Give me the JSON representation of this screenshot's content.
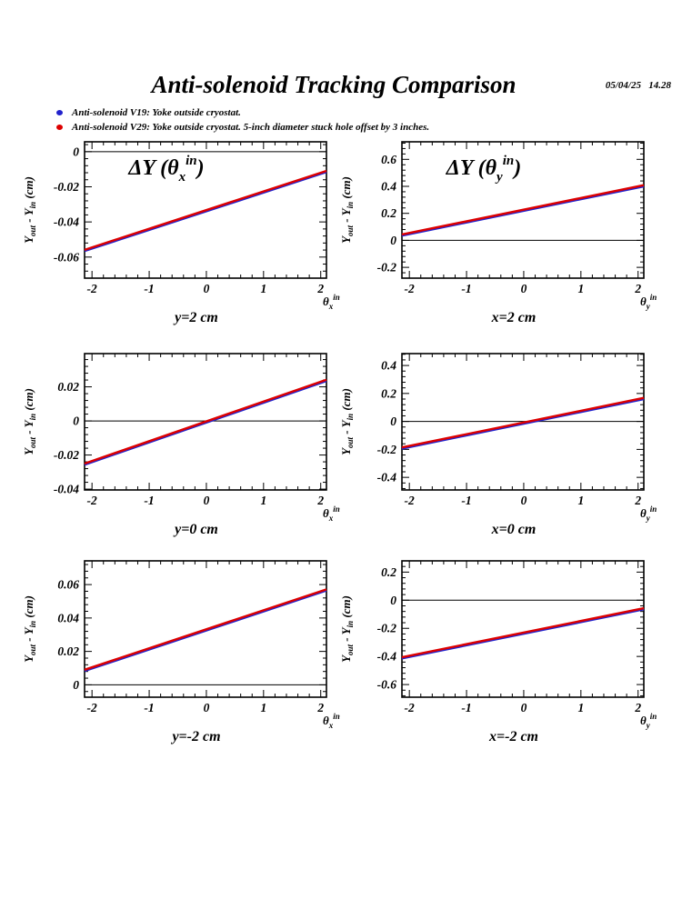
{
  "header": {
    "title": "Anti-solenoid Tracking Comparison",
    "datetime": "05/04/25   14.28"
  },
  "legend": {
    "items": [
      {
        "marker_color": "#2222cc",
        "label": "Anti-solenoid V19: Yoke outside cryostat."
      },
      {
        "marker_color": "#dd0000",
        "label": "Anti-solenoid V29: Yoke outside cryostat. 5-inch diameter stuck hole offset by 3 inches."
      }
    ]
  },
  "axis": {
    "ylabel_segments": [
      {
        "t": "Y"
      },
      {
        "t": "out",
        "sub": true
      },
      {
        "t": " - Y"
      },
      {
        "t": "in",
        "sub": true
      },
      {
        "t": " (cm)"
      }
    ]
  },
  "chart_data": {
    "type": "line",
    "x_axis": {
      "lim": [
        -2.13,
        2.1
      ],
      "major_ticks": [
        -2,
        -1,
        0,
        1,
        2
      ],
      "minor_step": 0.2,
      "tick_labels": [
        "-2",
        "-1",
        "0",
        "1",
        "2"
      ]
    },
    "series_colors": {
      "v19_blue": "#2222cc",
      "v29_red": "#dd0000"
    },
    "ylabel": "Y_out - Y_in (cm)",
    "plots": [
      {
        "id": "y2",
        "col": 0,
        "row": 0,
        "caption": "y=2 cm",
        "title": {
          "prefix": "ΔY (θ",
          "sub": "x",
          "sup": "in",
          "suffix": ")"
        },
        "xsym": {
          "base": "θ",
          "sub": "x",
          "sup": "in"
        },
        "ylim": [
          -0.072,
          0.0056
        ],
        "y_minor_step": 0.004,
        "zero_line": true,
        "yticks": [
          {
            "v": 0,
            "label": "0"
          },
          {
            "v": -0.02,
            "label": "-0.02"
          },
          {
            "v": -0.04,
            "label": "-0.04"
          },
          {
            "v": -0.06,
            "label": "-0.06"
          }
        ],
        "line": {
          "x": [
            -2,
            2
          ],
          "v19": [
            -0.0545,
            -0.012
          ],
          "v29": [
            -0.0545,
            -0.012
          ]
        }
      },
      {
        "id": "x2",
        "col": 1,
        "row": 0,
        "caption": "x=2 cm",
        "title": {
          "prefix": "ΔY (θ",
          "sub": "y",
          "sup": "in",
          "suffix": ")"
        },
        "xsym": {
          "base": "θ",
          "sub": "y",
          "sup": "in"
        },
        "ylim": [
          -0.28,
          0.73
        ],
        "y_minor_step": 0.04,
        "zero_line": true,
        "yticks": [
          {
            "v": 0.6,
            "label": "0.6"
          },
          {
            "v": 0.4,
            "label": "0.4"
          },
          {
            "v": 0.2,
            "label": "0.2"
          },
          {
            "v": 0,
            "label": "0"
          },
          {
            "v": -0.2,
            "label": "-0.2"
          }
        ],
        "line": {
          "x": [
            -2,
            2
          ],
          "v19": [
            0.055,
            0.4
          ],
          "v29": [
            0.055,
            0.4
          ]
        }
      },
      {
        "id": "y0",
        "col": 0,
        "row": 1,
        "caption": "y=0 cm",
        "title": null,
        "xsym": {
          "base": "θ",
          "sub": "x",
          "sup": "in"
        },
        "ylim": [
          -0.0405,
          0.0395
        ],
        "y_minor_step": 0.004,
        "zero_line": true,
        "yticks": [
          {
            "v": 0.02,
            "label": "0.02"
          },
          {
            "v": 0,
            "label": "0"
          },
          {
            "v": -0.02,
            "label": "-0.02"
          },
          {
            "v": -0.04,
            "label": "-0.04"
          }
        ],
        "line": {
          "x": [
            -2,
            2
          ],
          "v19": [
            -0.0235,
            0.023
          ],
          "v29": [
            -0.0235,
            0.023
          ]
        }
      },
      {
        "id": "x0",
        "col": 1,
        "row": 1,
        "caption": "x=0 cm",
        "title": null,
        "xsym": {
          "base": "θ",
          "sub": "y",
          "sup": "in"
        },
        "ylim": [
          -0.49,
          0.485
        ],
        "y_minor_step": 0.04,
        "zero_line": true,
        "yticks": [
          {
            "v": 0.4,
            "label": "0.4"
          },
          {
            "v": 0.2,
            "label": "0.2"
          },
          {
            "v": 0,
            "label": "0"
          },
          {
            "v": -0.2,
            "label": "-0.2"
          },
          {
            "v": -0.4,
            "label": "-0.4"
          }
        ],
        "line": {
          "x": [
            -2,
            2
          ],
          "v19": [
            -0.175,
            0.16
          ],
          "v29": [
            -0.175,
            0.16
          ]
        }
      },
      {
        "id": "ym2",
        "col": 0,
        "row": 2,
        "caption": "y=-2 cm",
        "title": null,
        "xsym": {
          "base": "θ",
          "sub": "x",
          "sup": "in"
        },
        "ylim": [
          -0.0074,
          0.0742
        ],
        "y_minor_step": 0.004,
        "zero_line": true,
        "yticks": [
          {
            "v": 0.06,
            "label": "0.06"
          },
          {
            "v": 0.04,
            "label": "0.04"
          },
          {
            "v": 0.02,
            "label": "0.02"
          },
          {
            "v": 0,
            "label": "0"
          }
        ],
        "line": {
          "x": [
            -2,
            2
          ],
          "v19": [
            0.0105,
            0.056
          ],
          "v29": [
            0.0105,
            0.056
          ]
        }
      },
      {
        "id": "xm2",
        "col": 1,
        "row": 2,
        "caption": "x=-2 cm",
        "title": null,
        "xsym": {
          "base": "θ",
          "sub": "y",
          "sup": "in"
        },
        "ylim": [
          -0.69,
          0.28
        ],
        "y_minor_step": 0.04,
        "zero_line": true,
        "yticks": [
          {
            "v": 0.2,
            "label": "0.2"
          },
          {
            "v": 0,
            "label": "0"
          },
          {
            "v": -0.2,
            "label": "-0.2"
          },
          {
            "v": -0.4,
            "label": "-0.4"
          },
          {
            "v": -0.6,
            "label": "-0.6"
          }
        ],
        "line": {
          "x": [
            -2,
            2
          ],
          "v19": [
            -0.395,
            -0.065
          ],
          "v29": [
            -0.395,
            -0.065
          ]
        }
      }
    ]
  }
}
